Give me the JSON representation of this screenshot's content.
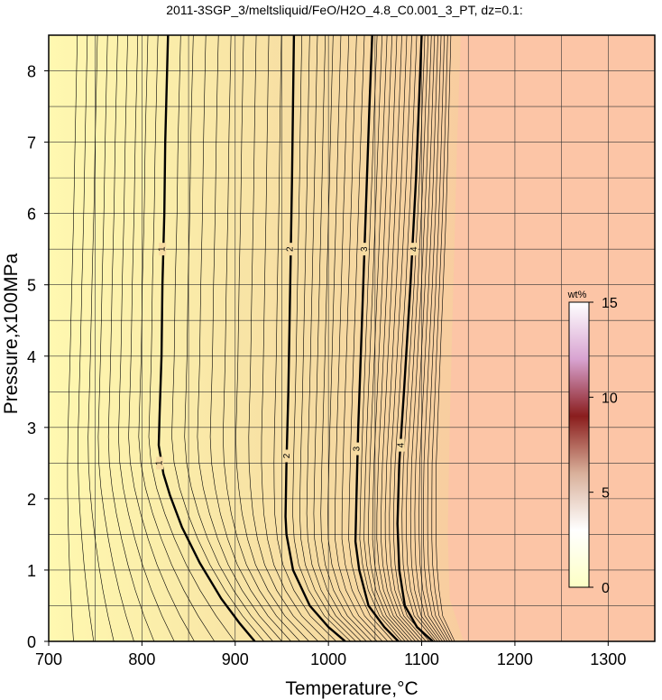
{
  "chart_data": {
    "type": "contour",
    "title": "2011-3SGP_3/meltsliquid/FeO/H2O_4.8_C0.001_3_PT, dz=0.1:",
    "xlabel": "Temperature,°C",
    "ylabel": "Pressure,x100MPa",
    "xlim": [
      700,
      1350
    ],
    "ylim": [
      0,
      8.5
    ],
    "x_ticks": [
      700,
      800,
      900,
      1000,
      1100,
      1200,
      1300
    ],
    "y_ticks": [
      0,
      1,
      2,
      3,
      4,
      5,
      6,
      7,
      8
    ],
    "grid": true,
    "contour_interval": 0.1,
    "colors": {
      "low": "#fff8b0",
      "mid": "#f6dba1",
      "high": "#fcc5a6",
      "grid": "#333333",
      "contour": "#000000"
    },
    "labeled_contours": [
      {
        "value": "1",
        "points": [
          [
            921,
            0
          ],
          [
            905,
            0.25
          ],
          [
            885,
            0.6
          ],
          [
            862,
            1.1
          ],
          [
            843,
            1.6
          ],
          [
            830,
            2.05
          ],
          [
            823,
            2.35
          ],
          [
            818,
            2.75
          ],
          [
            819,
            3.2
          ],
          [
            821,
            4.0
          ],
          [
            822,
            5.0
          ],
          [
            824,
            6.0
          ],
          [
            825,
            7.0
          ],
          [
            828,
            8.5
          ]
        ],
        "label_positions": [
          [
            819,
            2.5
          ],
          [
            822,
            5.5
          ]
        ]
      },
      {
        "value": "2",
        "points": [
          [
            1018,
            0
          ],
          [
            1000,
            0.2
          ],
          [
            980,
            0.5
          ],
          [
            962,
            1.0
          ],
          [
            955,
            1.5
          ],
          [
            954,
            1.75
          ],
          [
            955,
            2.5
          ],
          [
            957,
            3.5
          ],
          [
            959,
            5.0
          ],
          [
            961,
            6.5
          ],
          [
            963,
            8.5
          ]
        ],
        "label_positions": [
          [
            956,
            2.6
          ],
          [
            959,
            5.5
          ]
        ]
      },
      {
        "value": "3",
        "points": [
          [
            1075,
            0
          ],
          [
            1060,
            0.2
          ],
          [
            1043,
            0.5
          ],
          [
            1033,
            1.0
          ],
          [
            1029,
            1.4
          ],
          [
            1030,
            2.0
          ],
          [
            1032,
            3.0
          ],
          [
            1036,
            4.5
          ],
          [
            1040,
            6.0
          ],
          [
            1044,
            7.5
          ],
          [
            1047,
            8.5
          ]
        ],
        "label_positions": [
          [
            1031,
            2.7
          ],
          [
            1039,
            5.5
          ]
        ]
      },
      {
        "value": "4",
        "points": [
          [
            1112,
            0
          ],
          [
            1095,
            0.2
          ],
          [
            1082,
            0.5
          ],
          [
            1076,
            1.0
          ],
          [
            1074,
            1.65
          ],
          [
            1076,
            2.5
          ],
          [
            1081,
            3.5
          ],
          [
            1088,
            5.0
          ],
          [
            1094,
            6.5
          ],
          [
            1100,
            8.5
          ]
        ],
        "label_positions": [
          [
            1078,
            2.75
          ],
          [
            1092,
            5.5
          ]
        ]
      }
    ],
    "colorbar": {
      "label": "wt%",
      "ticks": [
        0,
        5,
        10,
        15
      ],
      "range": [
        0,
        15
      ],
      "colors": [
        "#fdffc4",
        "#ffffff",
        "#d9b09a",
        "#8a1d1d",
        "#d8a3d1",
        "#ffffff"
      ]
    }
  }
}
